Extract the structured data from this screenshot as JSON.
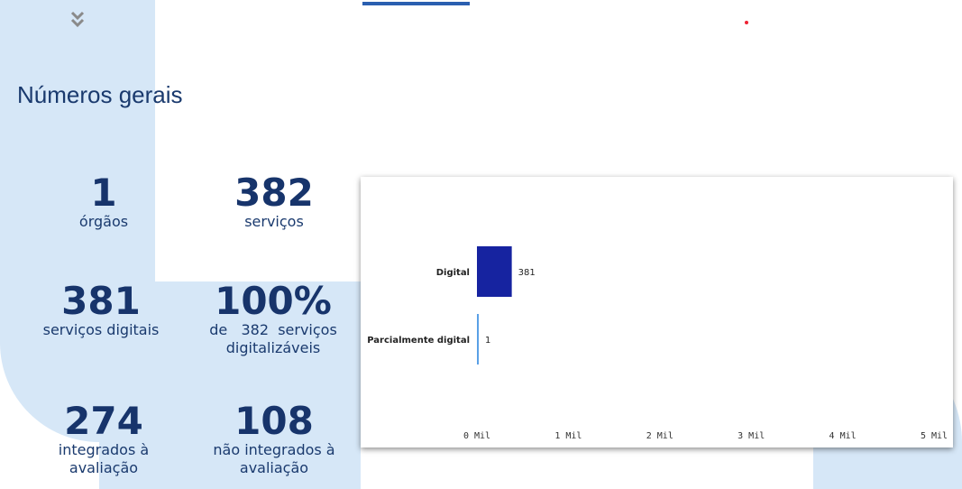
{
  "section": {
    "title": "Números gerais"
  },
  "stats": {
    "orgaos": {
      "value": "1",
      "label": "órgãos"
    },
    "servicos": {
      "value": "382",
      "label": "serviços"
    },
    "digitais": {
      "value": "381",
      "label": "serviços digitais"
    },
    "percent": {
      "value": "100%",
      "label_line1": "de   382  serviços",
      "label_line2": "digitalizáveis"
    },
    "integrados": {
      "value": "274",
      "label_line1": "integrados à",
      "label_line2": "avaliação"
    },
    "nao_integrados": {
      "value": "108",
      "label_line1": "não integrados à",
      "label_line2": "avaliação"
    }
  },
  "icons": {
    "collapse": "double-chevron-down-icon"
  },
  "colors": {
    "bar_digital": "#1623a0",
    "bar_parcial": "#5aa0e6",
    "title": "#1a3a6e",
    "panel": "#d6e7f7"
  },
  "chart_data": {
    "type": "bar",
    "orientation": "horizontal",
    "categories": [
      "Digital",
      "Parcialmente digital"
    ],
    "values": [
      381,
      1
    ],
    "value_labels": [
      "381",
      "1"
    ],
    "xlim": [
      0,
      5000
    ],
    "x_ticks": [
      0,
      1000,
      2000,
      3000,
      4000,
      5000
    ],
    "x_tick_labels": [
      "0 Mil",
      "1 Mil",
      "2 Mil",
      "3 Mil",
      "4 Mil",
      "5 Mil"
    ],
    "grid": false
  }
}
